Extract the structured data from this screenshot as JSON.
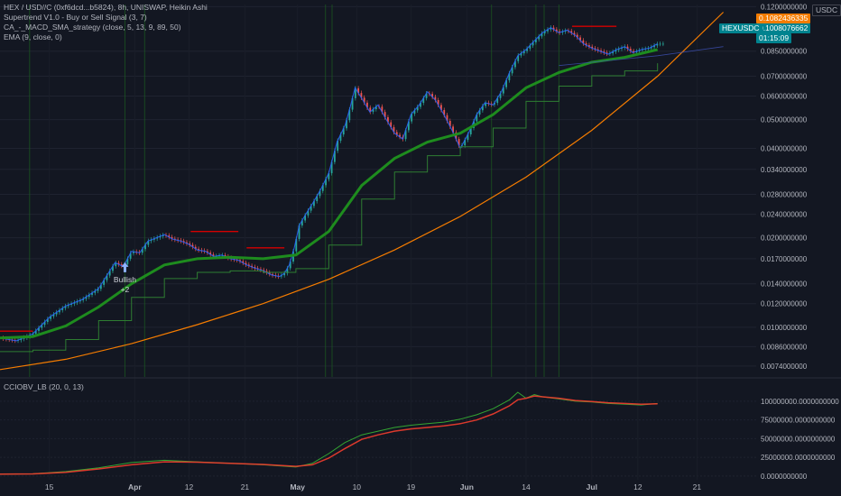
{
  "header": {
    "symbol_line": "HEX / USD//C (0xf6dcd...b5824), 8h, UNISWAP, Heikin Ashi",
    "indicators": [
      "Supertrend V1.0 - Buy or Sell Signal (3, 7)",
      "CA_-_MACD_SMA_strategy (close, 5, 13, 9, 89, 50)",
      "EMA (9, close, 0)"
    ]
  },
  "lower_pane": {
    "indicator": "CCIOBV_LB (20, 0, 13)"
  },
  "currency_label": "USDC",
  "price_tags": {
    "orange": "0.1082436335",
    "teal": "0.1008076662",
    "timer": "01:15:09",
    "symbol_badge": "HEXUSDC"
  },
  "annotation": {
    "text_line1": "Bullish",
    "text_line2": "+2"
  },
  "colors": {
    "background": "#131722",
    "candle_up": "#26a69a",
    "candle_down": "#ef5350",
    "ema": "#2962ff",
    "supertrend_up": "#1e8c1e",
    "supertrend_down": "#d50000",
    "curve": "#f57c00",
    "oscillator_green": "#33a532",
    "oscillator_red": "#f23d2d",
    "tag_orange": "#f57c00",
    "tag_teal": "#00838f"
  },
  "chart_data": [
    {
      "type": "line",
      "pane": "price",
      "yscale": "log",
      "ylim": [
        0.0068,
        0.122
      ],
      "y_ticks": [
        "0.1200000000",
        "0.0850000000",
        "0.0700000000",
        "0.0600000000",
        "0.0500000000",
        "0.0400000000",
        "0.0340000000",
        "0.0280000000",
        "0.0240000000",
        "0.0200000000",
        "0.0170000000",
        "0.0140000000",
        "0.0120000000",
        "0.0100000000",
        "0.0086000000",
        "0.0074000000"
      ],
      "x_ticks": [
        "15",
        "Apr",
        "12",
        "21",
        "May",
        "10",
        "19",
        "Jun",
        "14",
        "Jul",
        "12",
        "21"
      ],
      "x_positions": [
        3.0,
        8.2,
        11.5,
        14.9,
        18.1,
        21.7,
        25.0,
        28.4,
        32.0,
        36.0,
        38.8,
        42.4
      ],
      "xlim": [
        0,
        46
      ],
      "series": [
        {
          "x": [
            0,
            1,
            2,
            3,
            4,
            5,
            6,
            7,
            7.5,
            8,
            8.5,
            9,
            9.5,
            10,
            10.5,
            11,
            11.5,
            12,
            12.5,
            13,
            13.5,
            14,
            14.5,
            15,
            15.5,
            16,
            16.5,
            17,
            17.3,
            17.6,
            17.9,
            18.2,
            18.6,
            19,
            19.5,
            20,
            20.5,
            21,
            21.3,
            21.6,
            22,
            22.5,
            23,
            23.5,
            24,
            24.5,
            25,
            25.5,
            26,
            26.5,
            27,
            27.5,
            28,
            28.5,
            29,
            29.5,
            30,
            30.5,
            31,
            31.5,
            32,
            32.5,
            33,
            33.5,
            34,
            34.5,
            35,
            35.5,
            36,
            36.5,
            37,
            37.5,
            38,
            38.5,
            39,
            39.5,
            40
          ],
          "values": [
            0.0092,
            0.009,
            0.0095,
            0.0108,
            0.0118,
            0.0124,
            0.0135,
            0.0165,
            0.016,
            0.018,
            0.0178,
            0.0195,
            0.02,
            0.0205,
            0.0198,
            0.0195,
            0.019,
            0.0182,
            0.018,
            0.0173,
            0.0175,
            0.017,
            0.0168,
            0.0162,
            0.0158,
            0.0155,
            0.015,
            0.0148,
            0.0152,
            0.0162,
            0.0185,
            0.022,
            0.024,
            0.026,
            0.029,
            0.033,
            0.042,
            0.048,
            0.055,
            0.064,
            0.059,
            0.053,
            0.056,
            0.05,
            0.045,
            0.043,
            0.052,
            0.056,
            0.062,
            0.058,
            0.052,
            0.046,
            0.04,
            0.045,
            0.052,
            0.057,
            0.056,
            0.062,
            0.072,
            0.082,
            0.086,
            0.092,
            0.098,
            0.102,
            0.098,
            0.1,
            0.096,
            0.09,
            0.087,
            0.085,
            0.083,
            0.086,
            0.088,
            0.084,
            0.086,
            0.087,
            0.09
          ]
        },
        {
          "x": [
            0,
            2,
            4,
            6,
            8,
            10,
            12,
            14,
            16,
            18,
            20,
            22,
            24,
            26,
            28,
            30,
            32,
            34,
            36,
            38,
            40
          ],
          "values": [
            0.0092,
            0.0093,
            0.0101,
            0.0117,
            0.014,
            0.0162,
            0.017,
            0.0172,
            0.017,
            0.0175,
            0.021,
            0.03,
            0.037,
            0.042,
            0.045,
            0.052,
            0.064,
            0.072,
            0.078,
            0.081,
            0.086
          ]
        },
        {
          "x": [
            0,
            4,
            8,
            12,
            16,
            20,
            24,
            28,
            32,
            36,
            40,
            44
          ],
          "values": [
            0.0072,
            0.0078,
            0.0088,
            0.0102,
            0.012,
            0.0145,
            0.0182,
            0.0236,
            0.032,
            0.046,
            0.07,
            0.115
          ]
        },
        {
          "x": [
            34,
            36,
            38,
            40,
            44
          ],
          "values": [
            0.076,
            0.078,
            0.08,
            0.082,
            0.088
          ]
        }
      ]
    },
    {
      "type": "line",
      "pane": "oscillator",
      "ylim": [
        -5000000,
        118000000
      ],
      "y_ticks": [
        "100000000.0000000000",
        "75000000.0000000000",
        "50000000.0000000000",
        "25000000.0000000000",
        "0.0000000000"
      ],
      "x": [
        0,
        2,
        4,
        6,
        8,
        10,
        12,
        14,
        16,
        18,
        19,
        20,
        21,
        22,
        23,
        24,
        25,
        26,
        27,
        28,
        29,
        30,
        31,
        31.5,
        32,
        32.5,
        33,
        34,
        35,
        36,
        37,
        38,
        39,
        40
      ],
      "series": [
        {
          "values": [
            2500000,
            3000000,
            6000000,
            11000000,
            18000000,
            21000000,
            19000000,
            17000000,
            15000000,
            12000000,
            17000000,
            30000000,
            45000000,
            55000000,
            60000000,
            65000000,
            68000000,
            70000000,
            72000000,
            76000000,
            82000000,
            90000000,
            102000000,
            112000000,
            104000000,
            109000000,
            106000000,
            103000000,
            100000000,
            99000000,
            97000000,
            96000000,
            95000000,
            97000000
          ]
        },
        {
          "values": [
            2500000,
            2800000,
            5000000,
            9500000,
            15000000,
            19000000,
            18500000,
            17000000,
            15500000,
            13000000,
            15000000,
            24000000,
            37000000,
            49000000,
            55000000,
            60000000,
            63000000,
            65000000,
            67000000,
            70000000,
            75000000,
            83000000,
            94000000,
            102000000,
            104000000,
            107000000,
            106000000,
            104000000,
            101000000,
            99500000,
            98000000,
            97000000,
            96000000,
            96500000
          ]
        }
      ]
    }
  ]
}
